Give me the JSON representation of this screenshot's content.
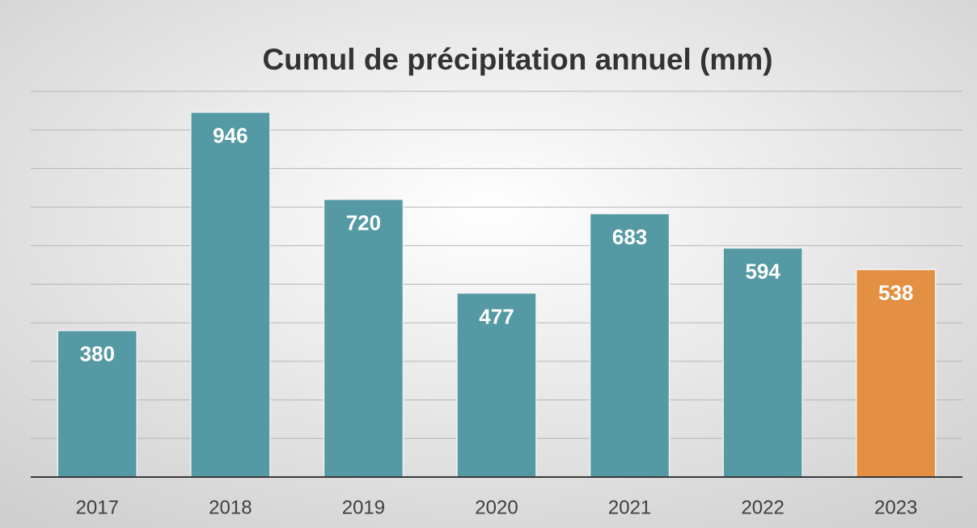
{
  "chart_data": {
    "type": "bar",
    "title": "Cumul de précipitation annuel (mm)",
    "categories": [
      "2017",
      "2018",
      "2019",
      "2020",
      "2021",
      "2022",
      "2023"
    ],
    "values": [
      380,
      946,
      720,
      477,
      683,
      594,
      538
    ],
    "colors": [
      "#5499a3",
      "#5499a3",
      "#5499a3",
      "#5499a3",
      "#5499a3",
      "#5499a3",
      "#e39043"
    ],
    "ylim": [
      0,
      1000
    ],
    "yticks": [
      0,
      100,
      200,
      300,
      400,
      500,
      600,
      700,
      800,
      900,
      1000
    ],
    "grid": true
  }
}
